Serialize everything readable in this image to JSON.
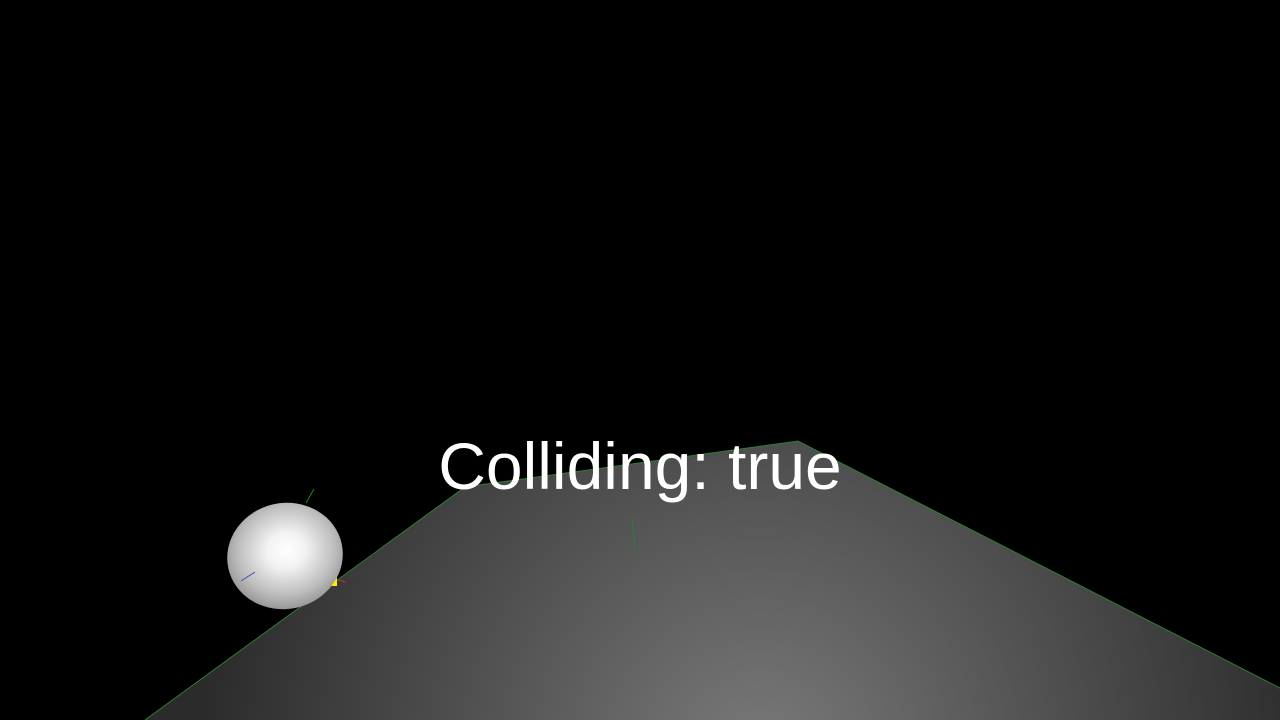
{
  "hud": {
    "status_text": "Colliding: true"
  },
  "scene": {
    "background_color": "#000000",
    "ground": {
      "shade_near": "#7a7a7a",
      "shade_far": "#2b2b2b",
      "edge_color": "#2e7d32"
    },
    "sphere": {
      "highlight_color": "#ffffff",
      "base_color": "#8a8a8a"
    },
    "marker_color": "#ffee00",
    "debug_axes": {
      "x_color": "#d32f2f",
      "y_color": "#2e7d32",
      "z_color": "#3f51b5"
    }
  }
}
